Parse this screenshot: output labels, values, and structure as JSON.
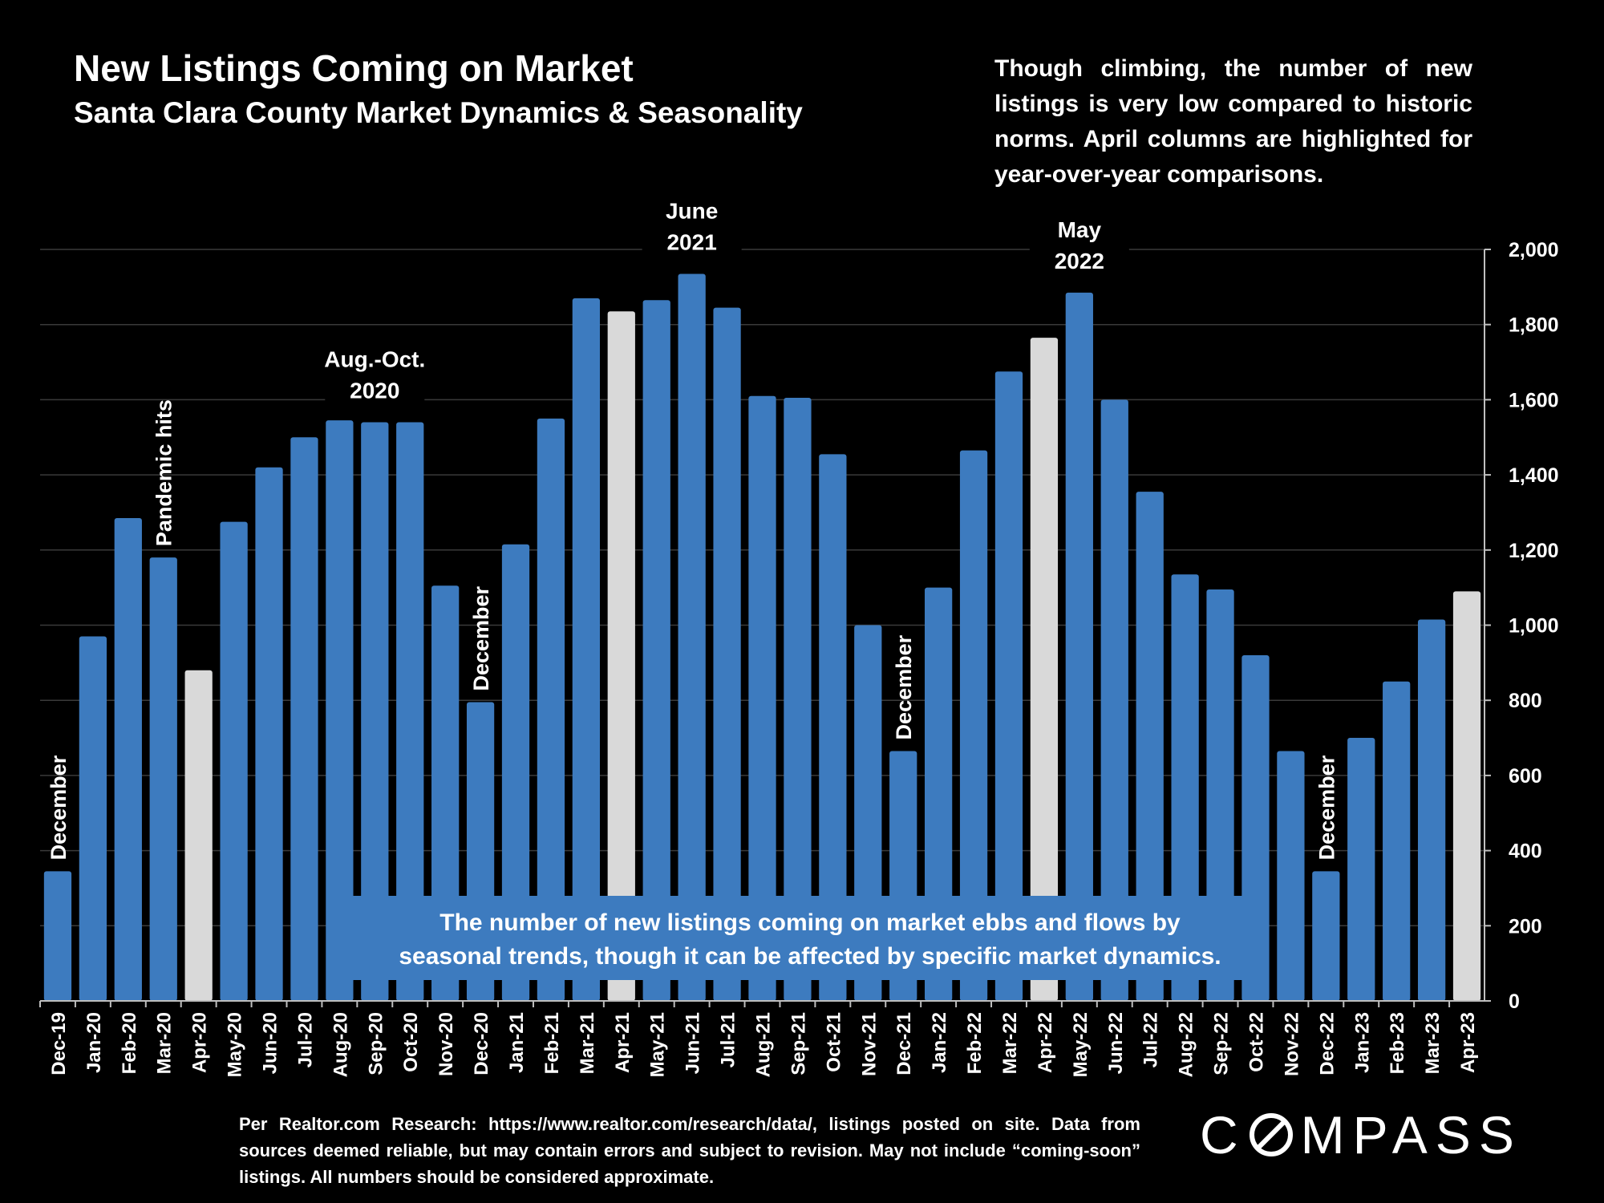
{
  "header": {
    "title": "New Listings Coming on Market",
    "subtitle": "Santa Clara County Market Dynamics & Seasonality",
    "note": "Though climbing, the number of new listings is very low compared to historic norms. April columns are highlighted for year-over-year comparisons."
  },
  "callout": {
    "line1": "The number of new listings coming on market ebbs and flows by",
    "line2": "seasonal trends, though it can be affected by specific market dynamics."
  },
  "footer": {
    "source_text": "Per Realtor.com Research: https://www.realtor.com/research/data/, listings posted on site. Data from sources deemed reliable, but may contain errors and subject to revision. May not include “coming-soon” listings. All numbers should be considered approximate.",
    "logo_text": "COMPASS"
  },
  "colors": {
    "background": "#000000",
    "bar": "#3d7bbf",
    "highlight_bar": "#d9d9d9",
    "grid": "#3a3a3a",
    "text": "#ffffff"
  },
  "chart_data": {
    "type": "bar",
    "title": "New Listings Coming on Market",
    "subtitle": "Santa Clara County Market Dynamics & Seasonality",
    "categories": [
      "Dec-19",
      "Jan-20",
      "Feb-20",
      "Mar-20",
      "Apr-20",
      "May-20",
      "Jun-20",
      "Jul-20",
      "Aug-20",
      "Sep-20",
      "Oct-20",
      "Nov-20",
      "Dec-20",
      "Jan-21",
      "Feb-21",
      "Mar-21",
      "Apr-21",
      "May-21",
      "Jun-21",
      "Jul-21",
      "Aug-21",
      "Sep-21",
      "Oct-21",
      "Nov-21",
      "Dec-21",
      "Jan-22",
      "Feb-22",
      "Mar-22",
      "Apr-22",
      "May-22",
      "Jun-22",
      "Jul-22",
      "Aug-22",
      "Sep-22",
      "Oct-22",
      "Nov-22",
      "Dec-22",
      "Jan-23",
      "Feb-23",
      "Mar-23",
      "Apr-23"
    ],
    "values": [
      345,
      970,
      1285,
      1180,
      880,
      1275,
      1420,
      1500,
      1545,
      1540,
      1540,
      1105,
      795,
      1215,
      1550,
      1870,
      1835,
      1865,
      1935,
      1845,
      1610,
      1605,
      1455,
      1000,
      665,
      1100,
      1465,
      1675,
      1765,
      1885,
      1600,
      1355,
      1135,
      1095,
      920,
      665,
      345,
      700,
      850,
      1015,
      1090
    ],
    "highlighted": [
      "Apr-20",
      "Apr-21",
      "Apr-22",
      "Apr-23"
    ],
    "ylim": [
      0,
      2000
    ],
    "yticks": [
      0,
      200,
      400,
      600,
      800,
      1000,
      1200,
      1400,
      1600,
      1800,
      2000
    ],
    "ytick_labels": [
      "0",
      "200",
      "400",
      "600",
      "800",
      "1,000",
      "1,200",
      "1,400",
      "1,600",
      "1,800",
      "2,000"
    ],
    "y_axis_side": "right",
    "grid": true,
    "legend": "none",
    "annotations": [
      {
        "text": "December",
        "category": "Dec-19",
        "vertical": true
      },
      {
        "text": "Pandemic hits",
        "category": "Mar-20",
        "vertical": true
      },
      {
        "text": "Aug.-Oct.",
        "text2": "2020",
        "category": "Sep-20",
        "vertical": false
      },
      {
        "text": "December",
        "category": "Dec-20",
        "vertical": true
      },
      {
        "text": "June",
        "text2": "2021",
        "category": "Jun-21",
        "vertical": false
      },
      {
        "text": "December",
        "category": "Dec-21",
        "vertical": true
      },
      {
        "text": "May",
        "text2": "2022",
        "category": "May-22",
        "vertical": false
      },
      {
        "text": "December",
        "category": "Dec-22",
        "vertical": true
      }
    ]
  }
}
